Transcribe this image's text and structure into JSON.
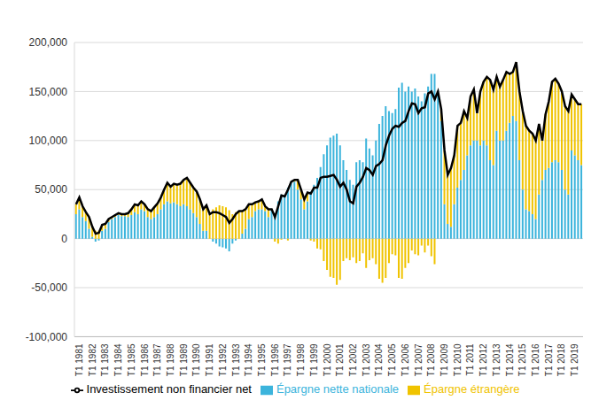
{
  "chart_data": {
    "type": "bar",
    "stacked": true,
    "grid": true,
    "legend": "bottom",
    "categories": [
      "T1 1981",
      null,
      null,
      null,
      "T1 1982",
      null,
      null,
      null,
      "T1 1983",
      null,
      null,
      null,
      "T1 1984",
      null,
      null,
      null,
      "T1 1985",
      null,
      null,
      null,
      "T1 1986",
      null,
      null,
      null,
      "T1 1987",
      null,
      null,
      null,
      "T1 1988",
      null,
      null,
      null,
      "T1 1989",
      null,
      null,
      null,
      "T1 1990",
      null,
      null,
      null,
      "T1 1991",
      null,
      null,
      null,
      "T1 1992",
      null,
      null,
      null,
      "T1 1993",
      null,
      null,
      null,
      "T1 1994",
      null,
      null,
      null,
      "T1 1995",
      null,
      null,
      null,
      "T1 1996",
      null,
      null,
      null,
      "T1 1997",
      null,
      null,
      null,
      "T1 1998",
      null,
      null,
      null,
      "T1 1999",
      null,
      null,
      null,
      "T1 2000",
      null,
      null,
      null,
      "T1 2001",
      null,
      null,
      null,
      "T1 2002",
      null,
      null,
      null,
      "T1 2003",
      null,
      null,
      null,
      "T1 2004",
      null,
      null,
      null,
      "T1 2005",
      null,
      null,
      null,
      "T1 2006",
      null,
      null,
      null,
      "T1 2007",
      null,
      null,
      null,
      "T1 2008",
      null,
      null,
      null,
      "T1 2009",
      null,
      null,
      null,
      "T1 2010",
      null,
      null,
      null,
      "T1 2011",
      null,
      null,
      null,
      "T1 2012",
      null,
      null,
      null,
      "T1 2013",
      null,
      null,
      null,
      "T1 2014",
      null,
      null,
      null,
      "T1 2015",
      null,
      null,
      null,
      "T1 2016",
      null,
      null,
      null,
      "T1 2017",
      null,
      null,
      null,
      "T1 2018",
      null,
      null,
      null,
      "T1 2019",
      null,
      null,
      null
    ],
    "ylim": [
      -100000,
      200000
    ],
    "yticks": [
      {
        "value": -100000,
        "label": "-100,000"
      },
      {
        "value": -50000,
        "label": "-50,000"
      },
      0,
      {
        "value": 50000,
        "label": "50,000"
      },
      {
        "value": 100000,
        "label": "100,000"
      },
      {
        "value": 150000,
        "label": "150,000"
      },
      {
        "value": 200000,
        "label": "200,000"
      }
    ],
    "series": [
      {
        "name": "Épargne nette nationale",
        "type": "bar",
        "color": "#3cb4dc",
        "values": [
          25000,
          30000,
          22000,
          18000,
          10000,
          2000,
          -3000,
          -2000,
          8000,
          10000,
          17000,
          20000,
          22000,
          24000,
          23000,
          23000,
          22000,
          24000,
          27000,
          25000,
          30000,
          28000,
          22000,
          20000,
          22000,
          25000,
          30000,
          35000,
          38000,
          36000,
          37000,
          35000,
          33000,
          35000,
          33000,
          30000,
          26000,
          22000,
          15000,
          8000,
          8000,
          0,
          -3000,
          -5000,
          -8000,
          -9000,
          -10000,
          -13000,
          -5000,
          -2000,
          0,
          5000,
          10000,
          20000,
          22000,
          28000,
          30000,
          30000,
          28000,
          22000,
          30000,
          25000,
          38000,
          45000,
          43000,
          52000,
          58000,
          58000,
          50000,
          40000,
          30000,
          38000,
          48000,
          55000,
          62000,
          73000,
          86000,
          95000,
          103000,
          105000,
          107000,
          95000,
          80000,
          70000,
          60000,
          55000,
          78000,
          80000,
          78000,
          102000,
          92000,
          85000,
          100000,
          117000,
          125000,
          135000,
          130000,
          128000,
          132000,
          154000,
          159000,
          150000,
          155000,
          150000,
          153000,
          145000,
          140000,
          148000,
          155000,
          168000,
          168000,
          150000,
          120000,
          35000,
          15000,
          12000,
          35000,
          52000,
          60000,
          70000,
          85000,
          95000,
          100000,
          100000,
          95000,
          100000,
          95000,
          80000,
          75000,
          110000,
          100000,
          100000,
          110000,
          118000,
          125000,
          120000,
          80000,
          50000,
          30000,
          28000,
          25000,
          20000,
          45000,
          60000,
          70000,
          72000,
          78000,
          80000,
          78000,
          70000,
          50000,
          45000,
          90000,
          85000,
          80000,
          75000
        ]
      },
      {
        "name": "Épargne étrangère",
        "type": "bar",
        "color": "#f0c300",
        "values": [
          10000,
          12000,
          11000,
          9000,
          12000,
          10000,
          8000,
          8000,
          6000,
          5000,
          3000,
          2000,
          2000,
          2000,
          2000,
          2000,
          4000,
          6000,
          8000,
          9000,
          8000,
          7000,
          8000,
          8000,
          10000,
          11000,
          12000,
          15000,
          19000,
          17000,
          19000,
          20000,
          23000,
          25000,
          29000,
          27000,
          26000,
          26000,
          25000,
          22000,
          26000,
          25000,
          30000,
          32000,
          34000,
          33000,
          32000,
          29000,
          25000,
          27000,
          28000,
          23000,
          20000,
          15000,
          13000,
          9000,
          8000,
          10000,
          5000,
          8000,
          0,
          -3000,
          -5000,
          -1000,
          0,
          -2000,
          0,
          2000,
          10000,
          10000,
          10000,
          9000,
          -2000,
          -3000,
          -10000,
          -11000,
          -23000,
          -32000,
          -39000,
          -40000,
          -47000,
          -42000,
          -23000,
          -20000,
          -22000,
          -19000,
          -25000,
          -23000,
          -15000,
          -30000,
          -22000,
          -20000,
          -26000,
          -41000,
          -45000,
          -40000,
          -25000,
          -16000,
          -17000,
          -40000,
          -41000,
          -30000,
          -25000,
          -12000,
          -16000,
          -17000,
          -7000,
          -14000,
          -7000,
          -18000,
          -26000,
          0,
          12000,
          55000,
          50000,
          60000,
          50000,
          63000,
          58000,
          60000,
          38000,
          50000,
          52000,
          28000,
          55000,
          60000,
          70000,
          82000,
          77000,
          55000,
          55000,
          62000,
          60000,
          50000,
          45000,
          60000,
          70000,
          80000,
          85000,
          82000,
          82000,
          80000,
          72000,
          40000,
          57000,
          68000,
          82000,
          83000,
          80000,
          80000,
          85000,
          85000,
          57000,
          57000,
          57000,
          62000
        ]
      },
      {
        "name": "Investissement non financier net",
        "type": "line",
        "color": "#000000",
        "values": [
          35000,
          42000,
          33000,
          27000,
          22000,
          12000,
          5000,
          6000,
          14000,
          15000,
          20000,
          22000,
          24000,
          26000,
          25000,
          25000,
          26000,
          30000,
          35000,
          34000,
          38000,
          35000,
          30000,
          28000,
          32000,
          36000,
          42000,
          50000,
          57000,
          53000,
          56000,
          55000,
          56000,
          60000,
          62000,
          57000,
          52000,
          48000,
          40000,
          30000,
          34000,
          25000,
          27000,
          27000,
          26000,
          24000,
          22000,
          16000,
          20000,
          25000,
          28000,
          28000,
          30000,
          35000,
          35000,
          37000,
          38000,
          40000,
          33000,
          30000,
          30000,
          22000,
          33000,
          44000,
          43000,
          50000,
          58000,
          60000,
          60000,
          50000,
          40000,
          47000,
          46000,
          52000,
          52000,
          62000,
          63000,
          63000,
          64000,
          65000,
          60000,
          53000,
          57000,
          50000,
          38000,
          36000,
          53000,
          57000,
          63000,
          72000,
          70000,
          65000,
          74000,
          76000,
          80000,
          95000,
          105000,
          112000,
          115000,
          114000,
          118000,
          120000,
          130000,
          138000,
          137000,
          128000,
          133000,
          134000,
          148000,
          150000,
          142000,
          150000,
          132000,
          90000,
          65000,
          72000,
          85000,
          115000,
          118000,
          130000,
          123000,
          145000,
          152000,
          128000,
          150000,
          160000,
          165000,
          162000,
          152000,
          165000,
          155000,
          162000,
          170000,
          168000,
          170000,
          180000,
          150000,
          130000,
          115000,
          110000,
          107000,
          100000,
          117000,
          100000,
          127000,
          140000,
          160000,
          163000,
          158000,
          150000,
          135000,
          130000,
          147000,
          142000,
          137000,
          137000
        ]
      }
    ]
  }
}
